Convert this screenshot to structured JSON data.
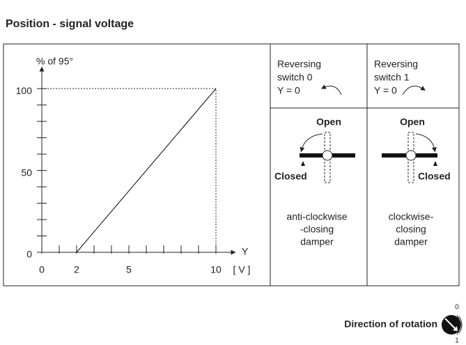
{
  "title": "Position - signal voltage",
  "chart_data": {
    "type": "line",
    "y_label": "% of 95°",
    "x_label": "Y",
    "x_unit": "[ V ]",
    "x": [
      2,
      10
    ],
    "values": [
      0,
      100
    ],
    "color": "#000000",
    "xlim": [
      0,
      11
    ],
    "ylim": [
      0,
      112
    ],
    "xticks": [
      0,
      2,
      5,
      10
    ],
    "yticks": [
      0,
      50,
      100
    ],
    "x_minor_ticks": [
      1,
      3,
      4,
      6,
      7,
      8,
      9
    ],
    "y_minor_ticks": [
      10,
      20,
      30,
      40,
      60,
      70,
      80,
      90
    ]
  },
  "panels": [
    {
      "switch": [
        "Reversing",
        "switch  0",
        "Y = 0"
      ],
      "open": "Open",
      "closed": "Closed",
      "description": [
        "anti-clockwise",
        "-closing",
        "damper"
      ]
    },
    {
      "switch": [
        "Reversing",
        "switch  1",
        "Y = 0"
      ],
      "open": "Open",
      "closed": "Closed",
      "description": [
        "clockwise-",
        "closing",
        "damper"
      ]
    }
  ],
  "footer": {
    "label": "Direction of rotation",
    "positions": [
      "0",
      "1"
    ]
  }
}
